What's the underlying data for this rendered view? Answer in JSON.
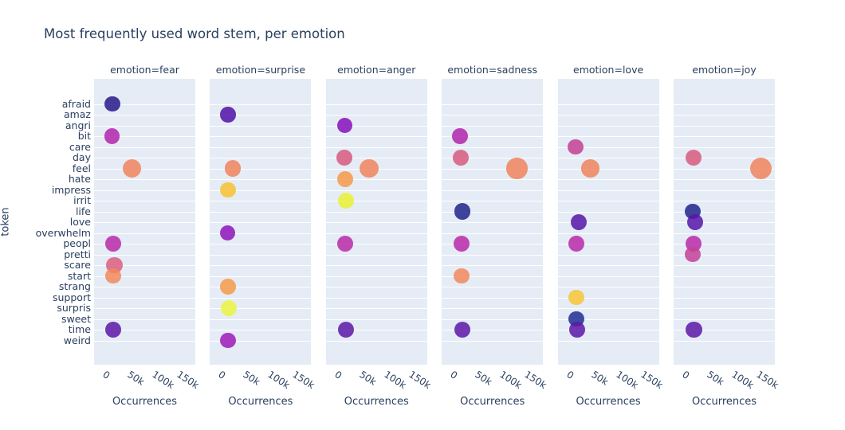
{
  "colors": {
    "text": "#2a3f5f",
    "panel_bg": "#e5ecf6",
    "grid": "#ffffff",
    "page_bg": "#ffffff"
  },
  "chart_data": {
    "type": "scatter",
    "title": "Most frequently used word stem, per emotion",
    "ylabel": "token",
    "xlabel": "Occurrences",
    "legend": "none",
    "grid": "horizontal-white-lines",
    "x_tick_labels": [
      "0",
      "50k",
      "100k",
      "150k"
    ],
    "x_tick_values": [
      0,
      50000,
      100000,
      150000
    ],
    "xlim": [
      -32000,
      173000
    ],
    "marker_opacity": 0.85,
    "tokens": [
      "afraid",
      "amaz",
      "angri",
      "bit",
      "care",
      "day",
      "feel",
      "hate",
      "impress",
      "irrit",
      "life",
      "love",
      "overwhelm",
      "peopl",
      "pretti",
      "scare",
      "start",
      "strang",
      "support",
      "surpris",
      "sweet",
      "time",
      "weird"
    ],
    "token_colors": {
      "afraid": "#29198b",
      "amaz": "#5112a6",
      "angri": "#870fbc",
      "bit": "#b124aa",
      "care": "#c63f94",
      "day": "#d85b7e",
      "feel": "#f0845c",
      "hate": "#f59a48",
      "impress": "#f7c232",
      "irrit": "#eaf235",
      "life": "#212589",
      "love": "#5715a8",
      "overwhelm": "#8f14ba",
      "peopl": "#b82aa8",
      "pretti": "#c44196",
      "scare": "#dc5e7e",
      "start": "#f1895c",
      "strang": "#f69b49",
      "support": "#f8c636",
      "surpris": "#ecf441",
      "sweet": "#1e2f91",
      "time": "#5d18a6",
      "weird": "#9e1bb7"
    },
    "facets": [
      {
        "label": "emotion=fear",
        "emotion": "fear",
        "points": [
          {
            "token": "afraid",
            "value": 5000
          },
          {
            "token": "bit",
            "value": 4000
          },
          {
            "token": "feel",
            "value": 45000
          },
          {
            "token": "peopl",
            "value": 6000
          },
          {
            "token": "scare",
            "value": 9000
          },
          {
            "token": "start",
            "value": 7000
          },
          {
            "token": "time",
            "value": 7000
          }
        ]
      },
      {
        "label": "emotion=surprise",
        "emotion": "surprise",
        "points": [
          {
            "token": "amaz",
            "value": 4000
          },
          {
            "token": "feel",
            "value": 14000
          },
          {
            "token": "impress",
            "value": 4000
          },
          {
            "token": "overwhelm",
            "value": 3000
          },
          {
            "token": "strang",
            "value": 4000
          },
          {
            "token": "surpris",
            "value": 6000
          },
          {
            "token": "weird",
            "value": 4000
          }
        ]
      },
      {
        "label": "emotion=anger",
        "emotion": "anger",
        "points": [
          {
            "token": "angri",
            "value": 6000
          },
          {
            "token": "day",
            "value": 5000
          },
          {
            "token": "feel",
            "value": 55000
          },
          {
            "token": "hate",
            "value": 7000
          },
          {
            "token": "irrit",
            "value": 8000
          },
          {
            "token": "peopl",
            "value": 7000
          },
          {
            "token": "time",
            "value": 8000
          }
        ]
      },
      {
        "label": "emotion=sadness",
        "emotion": "sadness",
        "points": [
          {
            "token": "bit",
            "value": 5000
          },
          {
            "token": "day",
            "value": 6000
          },
          {
            "token": "feel",
            "value": 120000
          },
          {
            "token": "life",
            "value": 9000
          },
          {
            "token": "peopl",
            "value": 8000
          },
          {
            "token": "start",
            "value": 7000
          },
          {
            "token": "time",
            "value": 9000
          }
        ]
      },
      {
        "label": "emotion=love",
        "emotion": "love",
        "points": [
          {
            "token": "care",
            "value": 4000
          },
          {
            "token": "feel",
            "value": 34000
          },
          {
            "token": "love",
            "value": 10000
          },
          {
            "token": "peopl",
            "value": 5000
          },
          {
            "token": "support",
            "value": 6000
          },
          {
            "token": "sweet",
            "value": 6000
          },
          {
            "token": "time",
            "value": 7000
          }
        ]
      },
      {
        "label": "emotion=joy",
        "emotion": "joy",
        "points": [
          {
            "token": "day",
            "value": 8000
          },
          {
            "token": "feel",
            "value": 145000
          },
          {
            "token": "life",
            "value": 7000
          },
          {
            "token": "love",
            "value": 11000
          },
          {
            "token": "peopl",
            "value": 8000
          },
          {
            "token": "pretti",
            "value": 7000
          },
          {
            "token": "time",
            "value": 9000
          }
        ]
      }
    ]
  }
}
